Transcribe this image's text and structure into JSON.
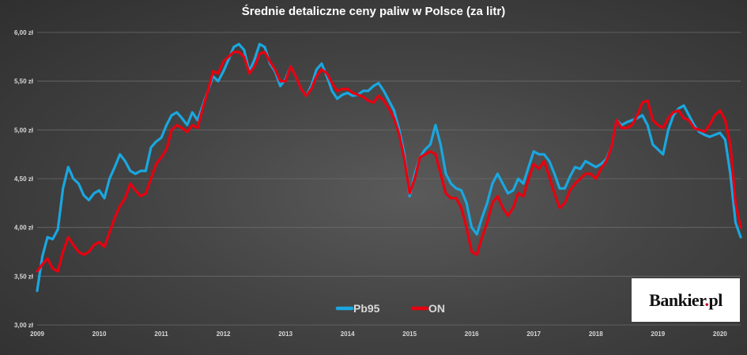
{
  "logo": {
    "name": "Bankier",
    "dot": ".",
    "suffix": "pl"
  },
  "chart_data": {
    "type": "line",
    "title": "Średnie detaliczne ceny paliw w Polsce (za litr)",
    "xlabel": "",
    "ylabel": "",
    "ylim": [
      3.0,
      6.0
    ],
    "xlim": [
      "2009-01",
      "2020-05"
    ],
    "y_ticks": [
      {
        "value": 3.0,
        "label": "3,00 zł"
      },
      {
        "value": 3.5,
        "label": "3,50 zł"
      },
      {
        "value": 4.0,
        "label": "4,00 zł"
      },
      {
        "value": 4.5,
        "label": "4,50 zł"
      },
      {
        "value": 5.0,
        "label": "5,00 zł"
      },
      {
        "value": 5.5,
        "label": "5,50 zł"
      },
      {
        "value": 6.0,
        "label": "6,00 zł"
      }
    ],
    "x_ticks": [
      "2009",
      "2010",
      "2011",
      "2012",
      "2013",
      "2014",
      "2015",
      "2016",
      "2017",
      "2018",
      "2019",
      "2020"
    ],
    "grid": true,
    "legend": "bottom-center",
    "series": [
      {
        "name": "Pb95",
        "color": "#1aa7e0",
        "points": [
          [
            "2009-01",
            3.35
          ],
          [
            "2009-02",
            3.7
          ],
          [
            "2009-03",
            3.9
          ],
          [
            "2009-04",
            3.88
          ],
          [
            "2009-05",
            3.98
          ],
          [
            "2009-06",
            4.4
          ],
          [
            "2009-07",
            4.62
          ],
          [
            "2009-08",
            4.5
          ],
          [
            "2009-09",
            4.45
          ],
          [
            "2009-10",
            4.33
          ],
          [
            "2009-11",
            4.28
          ],
          [
            "2009-12",
            4.35
          ],
          [
            "2010-01",
            4.38
          ],
          [
            "2010-02",
            4.3
          ],
          [
            "2010-03",
            4.5
          ],
          [
            "2010-04",
            4.62
          ],
          [
            "2010-05",
            4.75
          ],
          [
            "2010-06",
            4.68
          ],
          [
            "2010-07",
            4.58
          ],
          [
            "2010-08",
            4.55
          ],
          [
            "2010-09",
            4.58
          ],
          [
            "2010-10",
            4.58
          ],
          [
            "2010-11",
            4.82
          ],
          [
            "2010-12",
            4.88
          ],
          [
            "2011-01",
            4.92
          ],
          [
            "2011-02",
            5.05
          ],
          [
            "2011-03",
            5.15
          ],
          [
            "2011-04",
            5.18
          ],
          [
            "2011-05",
            5.12
          ],
          [
            "2011-06",
            5.05
          ],
          [
            "2011-07",
            5.18
          ],
          [
            "2011-08",
            5.1
          ],
          [
            "2011-09",
            5.25
          ],
          [
            "2011-10",
            5.4
          ],
          [
            "2011-11",
            5.55
          ],
          [
            "2011-12",
            5.5
          ],
          [
            "2012-01",
            5.6
          ],
          [
            "2012-02",
            5.72
          ],
          [
            "2012-03",
            5.85
          ],
          [
            "2012-04",
            5.88
          ],
          [
            "2012-05",
            5.82
          ],
          [
            "2012-06",
            5.6
          ],
          [
            "2012-07",
            5.72
          ],
          [
            "2012-08",
            5.88
          ],
          [
            "2012-09",
            5.85
          ],
          [
            "2012-10",
            5.68
          ],
          [
            "2012-11",
            5.6
          ],
          [
            "2012-12",
            5.45
          ],
          [
            "2013-01",
            5.52
          ],
          [
            "2013-02",
            5.65
          ],
          [
            "2013-03",
            5.55
          ],
          [
            "2013-04",
            5.42
          ],
          [
            "2013-05",
            5.35
          ],
          [
            "2013-06",
            5.45
          ],
          [
            "2013-07",
            5.62
          ],
          [
            "2013-08",
            5.68
          ],
          [
            "2013-09",
            5.55
          ],
          [
            "2013-10",
            5.4
          ],
          [
            "2013-11",
            5.32
          ],
          [
            "2013-12",
            5.36
          ],
          [
            "2014-01",
            5.38
          ],
          [
            "2014-02",
            5.35
          ],
          [
            "2014-03",
            5.36
          ],
          [
            "2014-04",
            5.4
          ],
          [
            "2014-05",
            5.4
          ],
          [
            "2014-06",
            5.45
          ],
          [
            "2014-07",
            5.48
          ],
          [
            "2014-08",
            5.4
          ],
          [
            "2014-09",
            5.3
          ],
          [
            "2014-10",
            5.2
          ],
          [
            "2014-11",
            5.0
          ],
          [
            "2014-12",
            4.75
          ],
          [
            "2015-01",
            4.32
          ],
          [
            "2015-02",
            4.55
          ],
          [
            "2015-03",
            4.72
          ],
          [
            "2015-04",
            4.8
          ],
          [
            "2015-05",
            4.85
          ],
          [
            "2015-06",
            5.05
          ],
          [
            "2015-07",
            4.85
          ],
          [
            "2015-08",
            4.55
          ],
          [
            "2015-09",
            4.45
          ],
          [
            "2015-10",
            4.4
          ],
          [
            "2015-11",
            4.38
          ],
          [
            "2015-12",
            4.25
          ],
          [
            "2016-01",
            4.0
          ],
          [
            "2016-02",
            3.93
          ],
          [
            "2016-03",
            4.1
          ],
          [
            "2016-04",
            4.25
          ],
          [
            "2016-05",
            4.45
          ],
          [
            "2016-06",
            4.55
          ],
          [
            "2016-07",
            4.45
          ],
          [
            "2016-08",
            4.35
          ],
          [
            "2016-09",
            4.38
          ],
          [
            "2016-10",
            4.5
          ],
          [
            "2016-11",
            4.45
          ],
          [
            "2016-12",
            4.62
          ],
          [
            "2017-01",
            4.78
          ],
          [
            "2017-02",
            4.75
          ],
          [
            "2017-03",
            4.75
          ],
          [
            "2017-04",
            4.68
          ],
          [
            "2017-05",
            4.55
          ],
          [
            "2017-06",
            4.4
          ],
          [
            "2017-07",
            4.4
          ],
          [
            "2017-08",
            4.52
          ],
          [
            "2017-09",
            4.62
          ],
          [
            "2017-10",
            4.6
          ],
          [
            "2017-11",
            4.68
          ],
          [
            "2017-12",
            4.65
          ],
          [
            "2018-01",
            4.62
          ],
          [
            "2018-02",
            4.65
          ],
          [
            "2018-03",
            4.7
          ],
          [
            "2018-04",
            4.82
          ],
          [
            "2018-05",
            5.1
          ],
          [
            "2018-06",
            5.05
          ],
          [
            "2018-07",
            5.08
          ],
          [
            "2018-08",
            5.1
          ],
          [
            "2018-09",
            5.12
          ],
          [
            "2018-10",
            5.15
          ],
          [
            "2018-11",
            5.05
          ],
          [
            "2018-12",
            4.85
          ],
          [
            "2019-01",
            4.8
          ],
          [
            "2019-02",
            4.75
          ],
          [
            "2019-03",
            5.0
          ],
          [
            "2019-04",
            5.15
          ],
          [
            "2019-05",
            5.22
          ],
          [
            "2019-06",
            5.25
          ],
          [
            "2019-07",
            5.15
          ],
          [
            "2019-08",
            5.05
          ],
          [
            "2019-09",
            4.98
          ],
          [
            "2019-10",
            4.95
          ],
          [
            "2019-11",
            4.93
          ],
          [
            "2019-12",
            4.95
          ],
          [
            "2020-01",
            4.97
          ],
          [
            "2020-02",
            4.9
          ],
          [
            "2020-03",
            4.55
          ],
          [
            "2020-04",
            4.05
          ],
          [
            "2020-05",
            3.9
          ]
        ]
      },
      {
        "name": "ON",
        "color": "#e8000f",
        "points": [
          [
            "2009-01",
            3.55
          ],
          [
            "2009-02",
            3.62
          ],
          [
            "2009-03",
            3.68
          ],
          [
            "2009-04",
            3.58
          ],
          [
            "2009-05",
            3.55
          ],
          [
            "2009-06",
            3.75
          ],
          [
            "2009-07",
            3.9
          ],
          [
            "2009-08",
            3.82
          ],
          [
            "2009-09",
            3.75
          ],
          [
            "2009-10",
            3.72
          ],
          [
            "2009-11",
            3.75
          ],
          [
            "2009-12",
            3.82
          ],
          [
            "2010-01",
            3.85
          ],
          [
            "2010-02",
            3.8
          ],
          [
            "2010-03",
            3.95
          ],
          [
            "2010-04",
            4.1
          ],
          [
            "2010-05",
            4.22
          ],
          [
            "2010-06",
            4.3
          ],
          [
            "2010-07",
            4.45
          ],
          [
            "2010-08",
            4.38
          ],
          [
            "2010-09",
            4.32
          ],
          [
            "2010-10",
            4.35
          ],
          [
            "2010-11",
            4.5
          ],
          [
            "2010-12",
            4.65
          ],
          [
            "2011-01",
            4.72
          ],
          [
            "2011-02",
            4.8
          ],
          [
            "2011-03",
            5.0
          ],
          [
            "2011-04",
            5.05
          ],
          [
            "2011-05",
            5.02
          ],
          [
            "2011-06",
            4.98
          ],
          [
            "2011-07",
            5.05
          ],
          [
            "2011-08",
            5.02
          ],
          [
            "2011-09",
            5.22
          ],
          [
            "2011-10",
            5.4
          ],
          [
            "2011-11",
            5.6
          ],
          [
            "2011-12",
            5.58
          ],
          [
            "2012-01",
            5.7
          ],
          [
            "2012-02",
            5.75
          ],
          [
            "2012-03",
            5.8
          ],
          [
            "2012-04",
            5.8
          ],
          [
            "2012-05",
            5.75
          ],
          [
            "2012-06",
            5.58
          ],
          [
            "2012-07",
            5.65
          ],
          [
            "2012-08",
            5.78
          ],
          [
            "2012-09",
            5.8
          ],
          [
            "2012-10",
            5.7
          ],
          [
            "2012-11",
            5.62
          ],
          [
            "2012-12",
            5.5
          ],
          [
            "2013-01",
            5.5
          ],
          [
            "2013-02",
            5.65
          ],
          [
            "2013-03",
            5.55
          ],
          [
            "2013-04",
            5.42
          ],
          [
            "2013-05",
            5.35
          ],
          [
            "2013-06",
            5.42
          ],
          [
            "2013-07",
            5.55
          ],
          [
            "2013-08",
            5.62
          ],
          [
            "2013-09",
            5.58
          ],
          [
            "2013-10",
            5.48
          ],
          [
            "2013-11",
            5.4
          ],
          [
            "2013-12",
            5.42
          ],
          [
            "2014-01",
            5.42
          ],
          [
            "2014-02",
            5.38
          ],
          [
            "2014-03",
            5.36
          ],
          [
            "2014-04",
            5.34
          ],
          [
            "2014-05",
            5.3
          ],
          [
            "2014-06",
            5.28
          ],
          [
            "2014-07",
            5.35
          ],
          [
            "2014-08",
            5.3
          ],
          [
            "2014-09",
            5.22
          ],
          [
            "2014-10",
            5.12
          ],
          [
            "2014-11",
            4.95
          ],
          [
            "2014-12",
            4.7
          ],
          [
            "2015-01",
            4.35
          ],
          [
            "2015-02",
            4.5
          ],
          [
            "2015-03",
            4.72
          ],
          [
            "2015-04",
            4.75
          ],
          [
            "2015-05",
            4.78
          ],
          [
            "2015-06",
            4.75
          ],
          [
            "2015-07",
            4.55
          ],
          [
            "2015-08",
            4.35
          ],
          [
            "2015-09",
            4.3
          ],
          [
            "2015-10",
            4.3
          ],
          [
            "2015-11",
            4.2
          ],
          [
            "2015-12",
            4.0
          ],
          [
            "2016-01",
            3.75
          ],
          [
            "2016-02",
            3.72
          ],
          [
            "2016-03",
            3.9
          ],
          [
            "2016-04",
            4.05
          ],
          [
            "2016-05",
            4.25
          ],
          [
            "2016-06",
            4.32
          ],
          [
            "2016-07",
            4.2
          ],
          [
            "2016-08",
            4.12
          ],
          [
            "2016-09",
            4.2
          ],
          [
            "2016-10",
            4.35
          ],
          [
            "2016-11",
            4.32
          ],
          [
            "2016-12",
            4.5
          ],
          [
            "2017-01",
            4.65
          ],
          [
            "2017-02",
            4.6
          ],
          [
            "2017-03",
            4.68
          ],
          [
            "2017-04",
            4.52
          ],
          [
            "2017-05",
            4.35
          ],
          [
            "2017-06",
            4.2
          ],
          [
            "2017-07",
            4.25
          ],
          [
            "2017-08",
            4.38
          ],
          [
            "2017-09",
            4.45
          ],
          [
            "2017-10",
            4.5
          ],
          [
            "2017-11",
            4.55
          ],
          [
            "2017-12",
            4.55
          ],
          [
            "2018-01",
            4.5
          ],
          [
            "2018-02",
            4.6
          ],
          [
            "2018-03",
            4.68
          ],
          [
            "2018-04",
            4.82
          ],
          [
            "2018-05",
            5.1
          ],
          [
            "2018-06",
            5.02
          ],
          [
            "2018-07",
            5.02
          ],
          [
            "2018-08",
            5.05
          ],
          [
            "2018-09",
            5.15
          ],
          [
            "2018-10",
            5.28
          ],
          [
            "2018-11",
            5.3
          ],
          [
            "2018-12",
            5.1
          ],
          [
            "2019-01",
            5.05
          ],
          [
            "2019-02",
            5.02
          ],
          [
            "2019-03",
            5.12
          ],
          [
            "2019-04",
            5.18
          ],
          [
            "2019-05",
            5.2
          ],
          [
            "2019-06",
            5.12
          ],
          [
            "2019-07",
            5.1
          ],
          [
            "2019-08",
            5.02
          ],
          [
            "2019-09",
            5.0
          ],
          [
            "2019-10",
            4.98
          ],
          [
            "2019-11",
            5.05
          ],
          [
            "2019-12",
            5.15
          ],
          [
            "2020-01",
            5.2
          ],
          [
            "2020-02",
            5.1
          ],
          [
            "2020-03",
            4.85
          ],
          [
            "2020-04",
            4.25
          ],
          [
            "2020-05",
            4.0
          ]
        ]
      }
    ]
  }
}
